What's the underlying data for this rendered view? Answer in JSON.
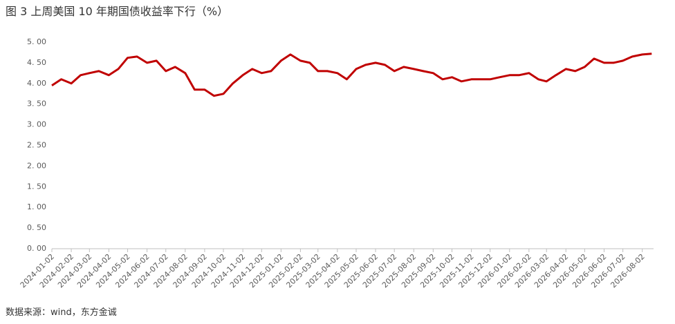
{
  "chart_data": {
    "type": "line",
    "title": "图 3 上周美国 10 年期国债收益率下行（%）",
    "source": "数据来源：wind，东方金诚",
    "color": "#c00000",
    "grid": false,
    "x": [
      "2024-01-02",
      "2024-01-17",
      "2024-02-02",
      "2024-02-17",
      "2024-03-02",
      "2024-03-17",
      "2024-04-02",
      "2024-04-17",
      "2024-05-02",
      "2024-05-17",
      "2024-06-02",
      "2024-06-17",
      "2024-07-02",
      "2024-07-17",
      "2024-08-02",
      "2024-08-17",
      "2024-09-02",
      "2024-09-17",
      "2024-10-02",
      "2024-10-17",
      "2024-11-02",
      "2024-11-17",
      "2024-12-02",
      "2024-12-17",
      "2025-01-02",
      "2025-01-17",
      "2025-02-02",
      "2025-02-17",
      "2025-03-02",
      "2025-03-17",
      "2025-04-02",
      "2025-04-17",
      "2025-05-02",
      "2025-05-17",
      "2025-06-02",
      "2025-06-17",
      "2025-07-02",
      "2025-07-17",
      "2025-08-02",
      "2025-08-17",
      "2025-09-02",
      "2025-09-17",
      "2025-10-02",
      "2025-10-17",
      "2025-11-02",
      "2025-11-17",
      "2025-12-02",
      "2025-12-17",
      "2026-01-02",
      "2026-01-17",
      "2026-02-02",
      "2026-02-17",
      "2026-03-02",
      "2026-03-17",
      "2026-04-02",
      "2026-04-17",
      "2026-05-02",
      "2026-05-17",
      "2026-06-02",
      "2026-06-17",
      "2026-07-02",
      "2026-07-17",
      "2026-08-02",
      "2026-08-17"
    ],
    "values": [
      3.95,
      4.1,
      4.0,
      4.2,
      4.25,
      4.3,
      4.2,
      4.35,
      4.62,
      4.65,
      4.5,
      4.55,
      4.3,
      4.4,
      4.25,
      3.85,
      3.85,
      3.7,
      3.75,
      4.0,
      4.2,
      4.35,
      4.25,
      4.3,
      4.55,
      4.7,
      4.55,
      4.5,
      4.3,
      4.3,
      4.25,
      4.1,
      4.35,
      4.45,
      4.5,
      4.45,
      4.3,
      4.4,
      4.35,
      4.3,
      4.25,
      4.1,
      4.15,
      4.05,
      4.1,
      4.1,
      4.1,
      4.15,
      4.2,
      4.2,
      4.25,
      4.1,
      4.05,
      4.2,
      4.35,
      4.3,
      4.4,
      4.6,
      4.5,
      4.5,
      4.55,
      4.65,
      4.7,
      4.72
    ],
    "xlim": [
      "2024-01-02",
      "2026-08-20"
    ],
    "xticks": [
      "2024-01-02",
      "2024-02-02",
      "2024-03-02",
      "2024-04-02",
      "2024-05-02",
      "2024-06-02",
      "2024-07-02",
      "2024-08-02",
      "2024-09-02",
      "2024-10-02",
      "2024-11-02",
      "2024-12-02",
      "2025-01-02",
      "2025-02-02",
      "2025-03-02",
      "2025-04-02",
      "2025-05-02",
      "2025-06-02",
      "2025-07-02",
      "2025-08-02",
      "2025-09-02",
      "2025-10-02",
      "2025-11-02",
      "2025-12-02",
      "2026-01-02",
      "2026-02-02",
      "2026-03-02",
      "2026-04-02",
      "2026-05-02",
      "2026-06-02",
      "2026-07-02",
      "2026-08-02"
    ],
    "ylim": [
      0,
      5
    ],
    "yticks": [
      {
        "value": 0,
        "label": "0. 00"
      },
      {
        "value": 0.5,
        "label": "0. 50"
      },
      {
        "value": 1,
        "label": "1. 00"
      },
      {
        "value": 1.5,
        "label": "1. 50"
      },
      {
        "value": 2,
        "label": "2. 00"
      },
      {
        "value": 2.5,
        "label": "2. 50"
      },
      {
        "value": 3,
        "label": "3. 00"
      },
      {
        "value": 3.5,
        "label": "3. 50"
      },
      {
        "value": 4,
        "label": "4. 00"
      },
      {
        "value": 4.5,
        "label": "4. 50"
      },
      {
        "value": 5,
        "label": "5. 00"
      }
    ]
  }
}
